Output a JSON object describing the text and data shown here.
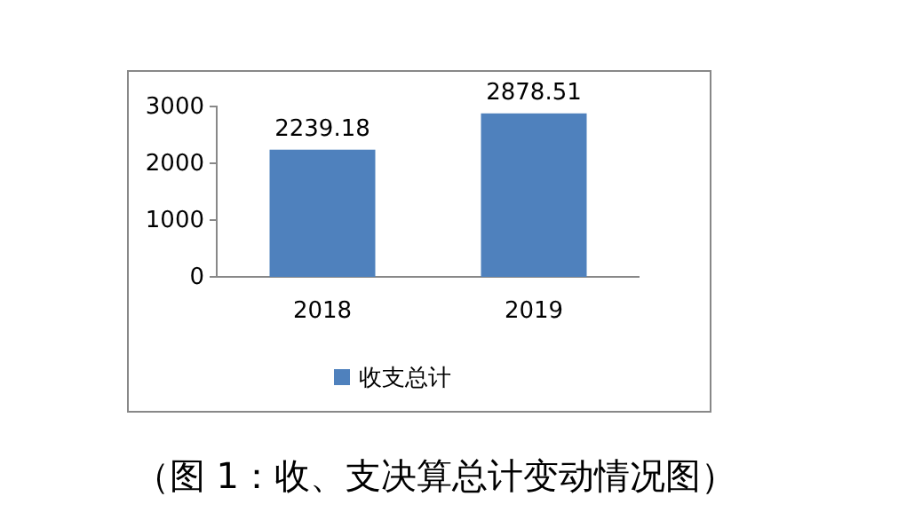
{
  "chart_data": {
    "type": "bar",
    "categories": [
      "2018",
      "2019"
    ],
    "series": [
      {
        "name": "收支总计",
        "color": "#4f81bd",
        "values": [
          2239.18,
          2878.51
        ]
      }
    ],
    "ylim": [
      0,
      3000
    ],
    "yticks": [
      0,
      1000,
      2000,
      3000
    ],
    "data_labels": true,
    "legend": "bottom",
    "grid": false,
    "annotations": [
      "（图 1：收、支决算总计变动情况图）"
    ]
  }
}
